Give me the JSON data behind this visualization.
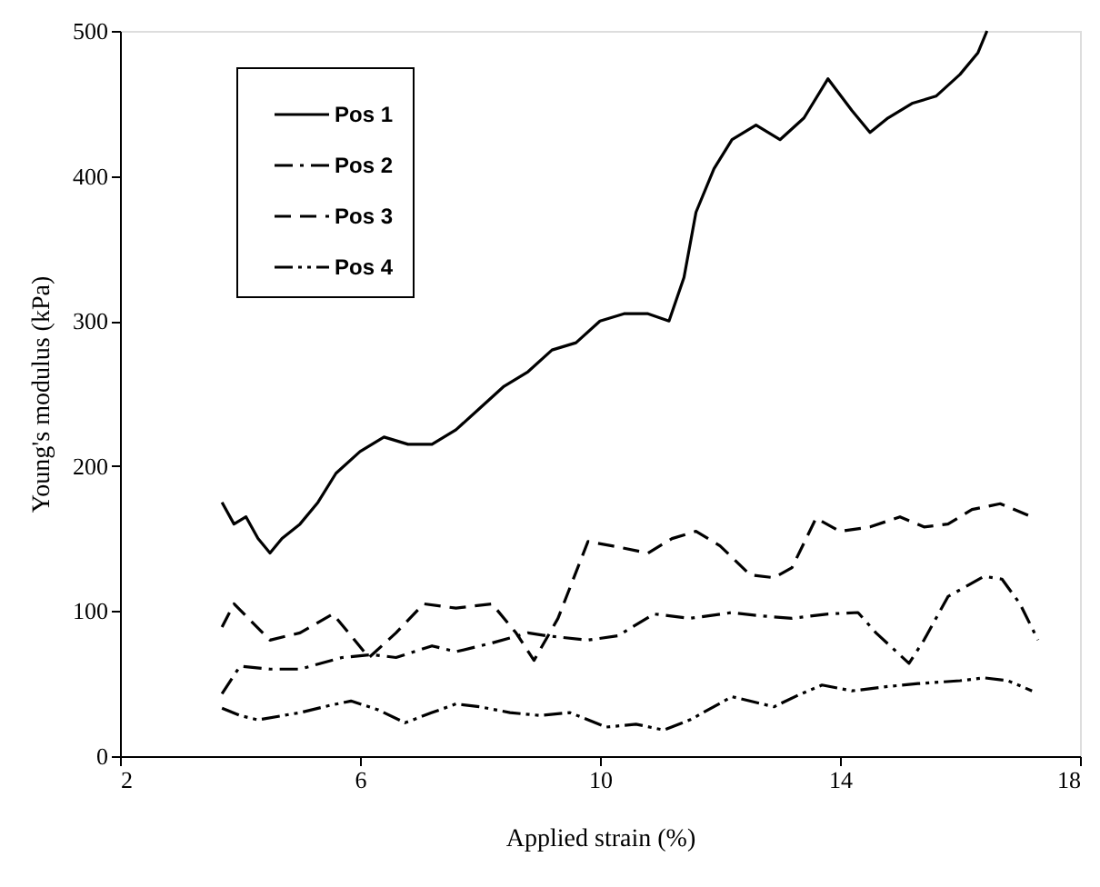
{
  "chart_data": {
    "type": "line",
    "xlabel": "Applied strain (%)",
    "ylabel": "Young's modulus (kPa)",
    "xlim": [
      2,
      18
    ],
    "xticks": [
      2,
      6,
      10,
      14,
      18
    ],
    "ylim": [
      0,
      500
    ],
    "yticks": [
      0,
      100,
      200,
      300,
      400,
      500
    ],
    "grid": false,
    "legend": "top left",
    "marker": "none",
    "series": [
      {
        "name": "Pos 1",
        "color": "#000000",
        "line_style": "solid",
        "x": [
          3.7,
          3.9,
          4.1,
          4.3,
          4.5,
          4.7,
          5.0,
          5.3,
          5.6,
          6.0,
          6.4,
          6.8,
          7.2,
          7.6,
          8.0,
          8.4,
          8.8,
          9.2,
          9.6,
          10.0,
          10.4,
          10.8,
          11.15,
          11.4,
          11.6,
          11.9,
          12.2,
          12.6,
          13.0,
          13.4,
          13.8,
          14.2,
          14.5,
          14.8,
          15.2,
          15.6,
          16.0,
          16.3,
          16.45
        ],
        "values": [
          175,
          160,
          165,
          150,
          140,
          150,
          160,
          175,
          195,
          210,
          220,
          215,
          215,
          225,
          240,
          255,
          265,
          280,
          285,
          300,
          305,
          305,
          300,
          330,
          375,
          405,
          425,
          435,
          425,
          440,
          467,
          445,
          430,
          440,
          450,
          455,
          470,
          485,
          500
        ]
      },
      {
        "name": "Pos 2",
        "color": "#000000",
        "line_style": "dashdot",
        "x": [
          3.7,
          4.0,
          4.5,
          5.0,
          5.7,
          6.2,
          6.6,
          7.2,
          7.6,
          8.2,
          8.8,
          9.1,
          9.8,
          10.3,
          10.9,
          11.5,
          12.2,
          12.6,
          13.2,
          13.8,
          14.3,
          14.6,
          15.15,
          15.4,
          15.8,
          16.4,
          16.7,
          17.0,
          17.3
        ],
        "values": [
          43,
          62,
          60,
          60,
          68,
          70,
          68,
          76,
          72,
          78,
          85,
          83,
          80,
          83,
          98,
          95,
          99,
          97,
          95,
          98,
          99,
          85,
          64,
          80,
          110,
          124,
          122,
          105,
          80
        ]
      },
      {
        "name": "Pos 3",
        "color": "#000000",
        "line_style": "dashed",
        "x": [
          3.7,
          3.9,
          4.5,
          5.0,
          5.55,
          6.15,
          6.6,
          7.06,
          7.6,
          8.2,
          8.6,
          8.9,
          9.3,
          9.8,
          10.2,
          10.8,
          11.2,
          11.6,
          12.0,
          12.5,
          12.9,
          13.2,
          13.6,
          14.0,
          14.5,
          15.0,
          15.4,
          15.8,
          16.2,
          16.67,
          17.2
        ],
        "values": [
          89,
          105,
          80,
          85,
          98,
          68,
          85,
          105,
          102,
          105,
          85,
          66,
          95,
          148,
          145,
          140,
          150,
          155,
          145,
          125,
          123,
          130,
          164,
          155,
          158,
          165,
          158,
          160,
          170,
          174,
          165
        ]
      },
      {
        "name": "Pos 4",
        "color": "#000000",
        "line_style": "dashdotdot",
        "x": [
          3.7,
          4.0,
          4.3,
          5.0,
          5.5,
          5.85,
          6.3,
          6.75,
          7.2,
          7.6,
          8.0,
          8.5,
          9.0,
          9.5,
          10.1,
          10.6,
          11.06,
          11.5,
          12.2,
          12.9,
          13.3,
          13.7,
          14.2,
          14.8,
          15.3,
          16.0,
          16.4,
          16.8,
          17.2
        ],
        "values": [
          33,
          28,
          25,
          30,
          35,
          38,
          32,
          23,
          30,
          36,
          34,
          30,
          28,
          30,
          20,
          22,
          18,
          25,
          41,
          34,
          42,
          49,
          45,
          48,
          50,
          52,
          54,
          52,
          45
        ]
      }
    ]
  }
}
